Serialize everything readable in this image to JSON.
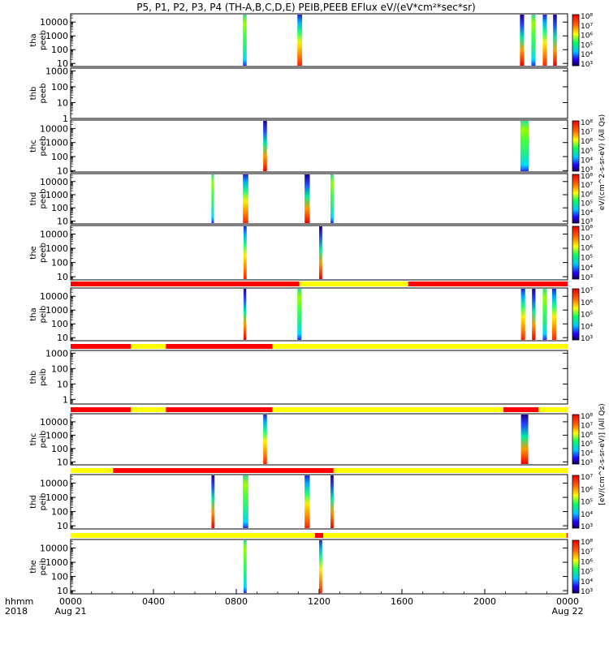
{
  "chart_data": {
    "type": "heatmap",
    "title": "P5, P1, P2, P3, P4 (TH-A,B,C,D,E) PEIB,PEEB EFlux eV/(eV*cm²*sec*sr)",
    "x_axis": {
      "range_hours": [
        0,
        24
      ],
      "tick_labels": [
        "0000",
        "0400",
        "0800",
        "1200",
        "1600",
        "2000",
        "0000"
      ],
      "tick_hours": [
        0,
        4,
        8,
        12,
        16,
        20,
        24
      ],
      "date_labels": [
        "Aug 21",
        "Aug 22"
      ],
      "corner_label_top": "hhmm",
      "corner_label_bottom": "2018"
    },
    "colorbar_labels": {
      "peeb": "eV/(cm^2-s-sr-eV) (All Qs)",
      "peib": "[eV/(cm^2-s-sr-eV)] (All Qs)"
    },
    "panels": [
      {
        "id": "tha-peeb",
        "label_top": "tha",
        "label_bottom": "peeb",
        "ylog": true,
        "ylim": [
          6,
          40000
        ],
        "yticks": [
          "10",
          "100",
          "1000",
          "10000"
        ],
        "colorbar": [
          "10³",
          "10⁴",
          "10⁵",
          "10⁶",
          "10⁷",
          "10⁸"
        ],
        "bursts": [
          {
            "start": 8.32,
            "end": 8.5
          },
          {
            "start": 10.95,
            "end": 11.18
          },
          {
            "start": 21.7,
            "end": 21.9
          },
          {
            "start": 22.25,
            "end": 22.45
          },
          {
            "start": 22.8,
            "end": 23.0
          },
          {
            "start": 23.3,
            "end": 23.48
          }
        ]
      },
      {
        "id": "thb-peeb",
        "label_top": "thb",
        "label_bottom": "peeb",
        "ylog": true,
        "ylim": [
          1,
          1500
        ],
        "yticks": [
          "1",
          "10",
          "100",
          "1000"
        ],
        "colorbar": [],
        "bursts": []
      },
      {
        "id": "thc-peeb",
        "label_top": "thc",
        "label_bottom": "peeb",
        "ylog": true,
        "ylim": [
          8,
          40000
        ],
        "yticks": [
          "10",
          "100",
          "1000",
          "10000"
        ],
        "colorbar": [
          "10³",
          "10⁴",
          "10⁵",
          "10⁶",
          "10⁷",
          "10⁸"
        ],
        "bursts": [
          {
            "start": 9.3,
            "end": 9.48
          },
          {
            "start": 21.72,
            "end": 22.12
          }
        ]
      },
      {
        "id": "thd-peeb",
        "label_top": "thd",
        "label_bottom": "peeb",
        "ylog": true,
        "ylim": [
          6,
          40000
        ],
        "yticks": [
          "10",
          "100",
          "1000",
          "10000"
        ],
        "colorbar": [
          "10³",
          "10⁴",
          "10⁵",
          "10⁶",
          "10⁷",
          "10⁸"
        ],
        "bursts": [
          {
            "start": 6.8,
            "end": 6.92
          },
          {
            "start": 8.32,
            "end": 8.58
          },
          {
            "start": 11.3,
            "end": 11.55
          },
          {
            "start": 12.55,
            "end": 12.7
          }
        ]
      },
      {
        "id": "the-peeb",
        "label_top": "the",
        "label_bottom": "peeb",
        "ylog": true,
        "ylim": [
          6,
          40000
        ],
        "yticks": [
          "10",
          "100",
          "1000",
          "10000"
        ],
        "colorbar": [
          "10³",
          "10⁴",
          "10⁵",
          "10⁶",
          "10⁷",
          "10⁸"
        ],
        "bursts": [
          {
            "start": 8.35,
            "end": 8.5
          },
          {
            "start": 12.0,
            "end": 12.15
          }
        ]
      },
      {
        "id": "tha-peib",
        "label_top": "tha",
        "label_bottom": "peib",
        "ylog": true,
        "ylim": [
          6,
          40000
        ],
        "yticks": [
          "10",
          "100",
          "1000",
          "10000"
        ],
        "colorbar": [
          "10³",
          "10⁴",
          "10⁵",
          "10⁶",
          "10⁷"
        ],
        "mode_bar": [
          {
            "start": 0,
            "end": 11.05,
            "mode": "red"
          },
          {
            "start": 11.05,
            "end": 16.3,
            "mode": "yellow"
          },
          {
            "start": 16.3,
            "end": 24,
            "mode": "red"
          }
        ],
        "bursts": [
          {
            "start": 8.35,
            "end": 8.48
          },
          {
            "start": 10.95,
            "end": 11.15
          },
          {
            "start": 21.75,
            "end": 21.95
          },
          {
            "start": 22.28,
            "end": 22.45
          },
          {
            "start": 22.8,
            "end": 23.0
          },
          {
            "start": 23.25,
            "end": 23.45
          }
        ]
      },
      {
        "id": "thb-peib",
        "label_top": "thb",
        "label_bottom": "peib",
        "ylog": true,
        "ylim": [
          0.5,
          1500
        ],
        "yticks": [
          "1",
          "10",
          "100",
          "1000"
        ],
        "colorbar": [],
        "mode_bar": [
          {
            "start": 0,
            "end": 2.9,
            "mode": "red"
          },
          {
            "start": 2.9,
            "end": 4.6,
            "mode": "yellow"
          },
          {
            "start": 4.6,
            "end": 9.75,
            "mode": "red"
          },
          {
            "start": 9.75,
            "end": 24,
            "mode": "yellow"
          }
        ],
        "bursts": []
      },
      {
        "id": "thc-peib",
        "label_top": "thc",
        "label_bottom": "peib",
        "ylog": true,
        "ylim": [
          6,
          40000
        ],
        "yticks": [
          "10",
          "100",
          "1000",
          "10000"
        ],
        "colorbar": [
          "10³",
          "10⁴",
          "10⁵",
          "10⁶",
          "10⁷",
          "10⁸"
        ],
        "mode_bar": [
          {
            "start": 0,
            "end": 2.9,
            "mode": "red"
          },
          {
            "start": 2.9,
            "end": 4.6,
            "mode": "yellow"
          },
          {
            "start": 4.6,
            "end": 9.75,
            "mode": "red"
          },
          {
            "start": 9.75,
            "end": 20.9,
            "mode": "yellow"
          },
          {
            "start": 20.9,
            "end": 22.6,
            "mode": "red"
          },
          {
            "start": 22.6,
            "end": 24,
            "mode": "yellow"
          }
        ],
        "bursts": [
          {
            "start": 9.3,
            "end": 9.48
          },
          {
            "start": 21.75,
            "end": 22.1
          }
        ]
      },
      {
        "id": "thd-peib",
        "label_top": "thd",
        "label_bottom": "peib",
        "ylog": true,
        "ylim": [
          6,
          40000
        ],
        "yticks": [
          "10",
          "100",
          "1000",
          "10000"
        ],
        "colorbar": [
          "10³",
          "10⁴",
          "10⁵",
          "10⁶",
          "10⁷"
        ],
        "mode_bar": [
          {
            "start": 0,
            "end": 2.05,
            "mode": "yellow"
          },
          {
            "start": 2.05,
            "end": 12.7,
            "mode": "red"
          },
          {
            "start": 12.7,
            "end": 24,
            "mode": "yellow"
          }
        ],
        "bursts": [
          {
            "start": 6.8,
            "end": 6.95
          },
          {
            "start": 8.32,
            "end": 8.58
          },
          {
            "start": 11.3,
            "end": 11.55
          },
          {
            "start": 12.55,
            "end": 12.7
          }
        ]
      },
      {
        "id": "the-peib",
        "label_top": "the",
        "label_bottom": "peib",
        "ylog": true,
        "ylim": [
          6,
          40000
        ],
        "yticks": [
          "10",
          "100",
          "1000",
          "10000"
        ],
        "colorbar": [
          "10³",
          "10⁴",
          "10⁵",
          "10⁶",
          "10⁷",
          "10⁸"
        ],
        "mode_bar": [
          {
            "start": 0,
            "end": 11.8,
            "mode": "yellow"
          },
          {
            "start": 11.8,
            "end": 12.2,
            "mode": "red"
          },
          {
            "start": 12.2,
            "end": 23.95,
            "mode": "yellow"
          },
          {
            "start": 23.95,
            "end": 24,
            "mode": "red"
          }
        ],
        "bursts": [
          {
            "start": 8.35,
            "end": 8.5
          },
          {
            "start": 12.0,
            "end": 12.15
          }
        ]
      }
    ]
  }
}
